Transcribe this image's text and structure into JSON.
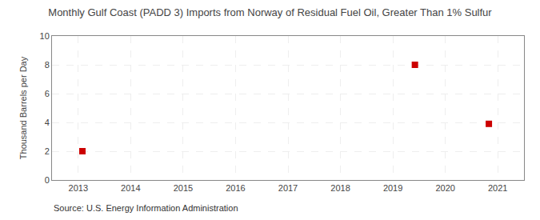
{
  "chart_data": {
    "type": "scatter",
    "title": "Monthly Gulf Coast (PADD 3) Imports from Norway of Residual Fuel Oil, Greater Than 1% Sulfur",
    "ylabel": "Thousand Barrels per Day",
    "annotations": [
      "Source: U.S. Energy Information Administration"
    ],
    "x": [
      2013.08,
      2019.42,
      2020.83
    ],
    "values": [
      2,
      8,
      3.9
    ],
    "color": "#cc0000",
    "marker": "square",
    "xlim": [
      2012.5,
      2021.5
    ],
    "ylim": [
      0,
      10
    ],
    "xticks": [
      2013,
      2014,
      2015,
      2016,
      2017,
      2018,
      2019,
      2020,
      2021
    ],
    "yticks": [
      0,
      2,
      4,
      6,
      8,
      10
    ],
    "grid": true
  }
}
